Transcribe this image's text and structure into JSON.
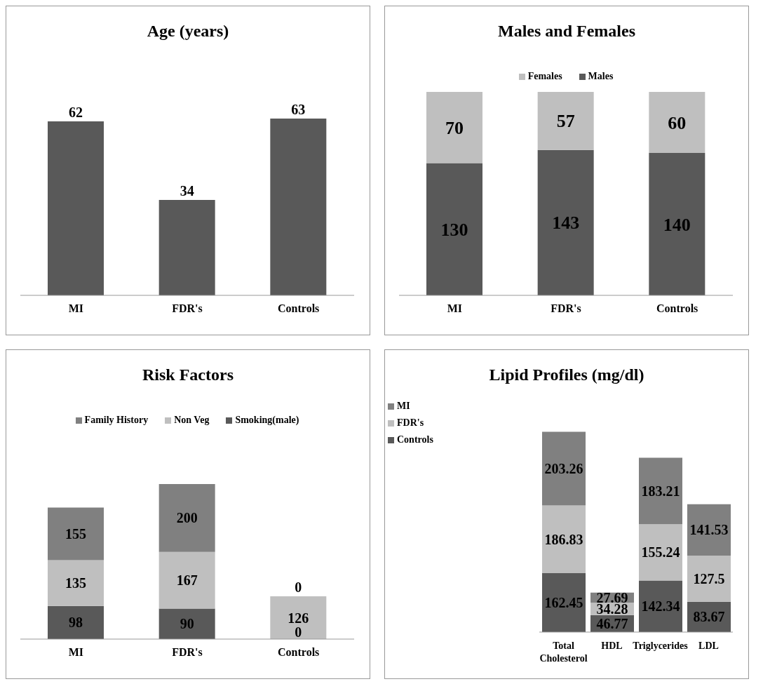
{
  "chart_data": [
    {
      "type": "bar",
      "title": "Age (years)",
      "categories": [
        "MI",
        "FDR's",
        "Controls"
      ],
      "values": [
        62,
        34,
        63
      ],
      "color": "#595959",
      "data_labels": true
    },
    {
      "type": "bar",
      "title": "Males and Females",
      "categories": [
        "MI",
        "FDR's",
        "Controls"
      ],
      "stacked": true,
      "data_labels": true,
      "legend": "top",
      "series": [
        {
          "name": "Males",
          "color": "#595959",
          "values": [
            130,
            143,
            140
          ]
        },
        {
          "name": "Females",
          "color": "#bfbfbf",
          "values": [
            70,
            57,
            60
          ]
        }
      ]
    },
    {
      "type": "bar",
      "title": "Risk Factors",
      "categories": [
        "MI",
        "FDR's",
        "Controls"
      ],
      "stacked": true,
      "data_labels": true,
      "legend": "top",
      "series": [
        {
          "name": "Smoking(male)",
          "color": "#595959",
          "values": [
            98,
            90,
            0
          ]
        },
        {
          "name": "Non Veg",
          "color": "#bfbfbf",
          "values": [
            135,
            167,
            126
          ]
        },
        {
          "name": "Family History",
          "color": "#808080",
          "values": [
            155,
            200,
            0
          ]
        }
      ]
    },
    {
      "type": "bar",
      "title": "Lipid Profiles (mg/dl)",
      "categories": [
        "Total Cholesterol",
        "HDL",
        "Triglycerides",
        "LDL"
      ],
      "stacked": true,
      "data_labels": true,
      "legend": "top left",
      "series": [
        {
          "name": "Controls",
          "color": "#595959",
          "values": [
            162.45,
            46.77,
            142.34,
            83.67
          ]
        },
        {
          "name": "FDR's",
          "color": "#bfbfbf",
          "values": [
            186.83,
            34.28,
            155.24,
            127.5
          ]
        },
        {
          "name": "MI",
          "color": "#808080",
          "values": [
            203.26,
            27.69,
            183.21,
            141.53
          ]
        }
      ]
    }
  ]
}
